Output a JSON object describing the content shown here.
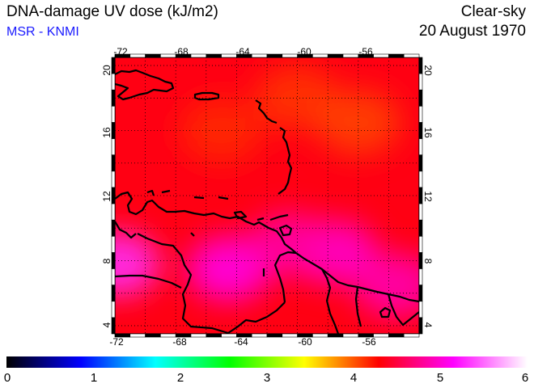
{
  "header": {
    "title": "DNA-damage UV dose (kJ/m2)",
    "subtitle": "MSR - KNMI",
    "sky_condition": "Clear-sky",
    "date": "20 August 1970"
  },
  "map": {
    "lon_range": [
      -72,
      -52
    ],
    "lat_range": [
      3.5,
      20.5
    ],
    "lon_ticks": [
      "-72",
      "-68",
      "-64",
      "-60",
      "-56"
    ],
    "lat_ticks": [
      "20",
      "16",
      "12",
      "8",
      "4"
    ],
    "background_value_kJm2": 4.35,
    "field_hotspots": [
      {
        "lon": -71.8,
        "lat": 7.8,
        "value": 5.3
      },
      {
        "lon": -64.5,
        "lat": 7.5,
        "value": 5.1
      },
      {
        "lon": -57.5,
        "lat": 8.5,
        "value": 5.0
      },
      {
        "lon": -60.5,
        "lat": 9.0,
        "value": 4.85
      },
      {
        "lon": -53.5,
        "lat": 6.5,
        "value": 4.9
      },
      {
        "lon": -60.0,
        "lat": 18.0,
        "value": 4.1
      },
      {
        "lon": -56.0,
        "lat": 16.5,
        "value": 4.05
      },
      {
        "lon": -65.0,
        "lat": 16.0,
        "value": 4.15
      }
    ]
  },
  "colorbar": {
    "min": 0,
    "max": 6,
    "tick_labels": [
      "0",
      "1",
      "2",
      "3",
      "4",
      "5",
      "6"
    ],
    "colors": [
      "#000000",
      "#0000ff",
      "#00ffff",
      "#00ff00",
      "#ffff00",
      "#ff0000",
      "#ff00ff",
      "#ffffff"
    ]
  }
}
